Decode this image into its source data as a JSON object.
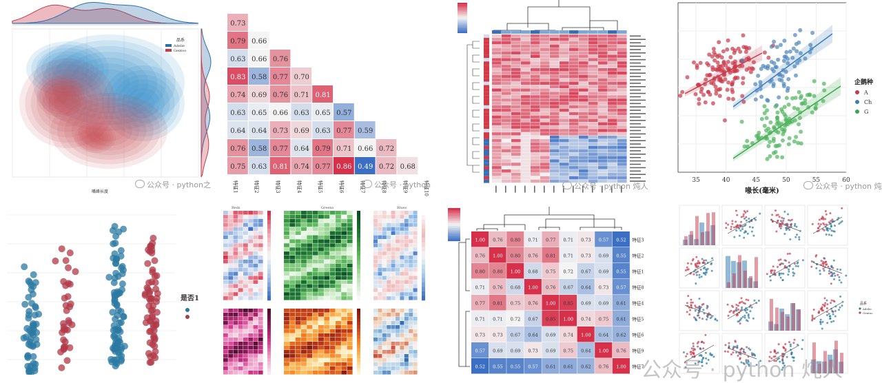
{
  "watermarks": {
    "p1": "公众号 · python之",
    "p2": "公众号 · python",
    "p3": "公众号 · python 炖人",
    "p4": "公众号 · python 炖",
    "p7": "公众号 · python 炖人"
  },
  "colors": {
    "red": "#c8394a",
    "blue": "#3a7fb8",
    "green": "#3aa64b"
  },
  "chart_data": [
    {
      "id": "kde-joint",
      "type": "area",
      "legend": {
        "title": "品系",
        "entries": [
          "Adelie",
          "Gentoo"
        ],
        "colors": [
          "#2b6ea8",
          "#c83a4a"
        ]
      },
      "xlabel": "嘴峰长度"
    },
    {
      "id": "corr-triangle",
      "type": "heatmap",
      "rows": [
        [
          0.73
        ],
        [
          0.79,
          0.66
        ],
        [
          0.63,
          0.66,
          0.76
        ],
        [
          0.83,
          0.58,
          0.77,
          0.7
        ],
        [
          0.74,
          0.69,
          0.76,
          0.71,
          0.81
        ],
        [
          0.63,
          0.65,
          0.66,
          0.63,
          0.65,
          0.57
        ],
        [
          0.64,
          0.64,
          0.73,
          0.69,
          0.63,
          0.77,
          0.59
        ],
        [
          0.76,
          0.58,
          0.77,
          0.64,
          0.79,
          0.71,
          0.66,
          0.72
        ],
        [
          0.75,
          0.63,
          0.81,
          0.74,
          0.77,
          0.86,
          0.49,
          0.72,
          0.68
        ]
      ],
      "xlabels": [
        "特征1",
        "特征2",
        "特征3",
        "特征4",
        "特征5",
        "特征6",
        "特征7",
        "特征8",
        "特征9",
        "特征10"
      ]
    },
    {
      "id": "clustermap",
      "type": "heatmap"
    },
    {
      "id": "scatter-regression",
      "type": "scatter",
      "xlabel": "喙长(毫米)",
      "xticks": [
        "35",
        "40",
        "45",
        "50",
        "55",
        "60"
      ],
      "xlim": [
        32,
        60
      ],
      "ylim": [
        0,
        1
      ],
      "legend": {
        "title": "企鹅种",
        "entries": [
          "A",
          "Ch",
          "G"
        ]
      }
    },
    {
      "id": "strip-plot",
      "type": "scatter",
      "legend": {
        "title": "是否1"
      }
    },
    {
      "id": "multi-heatmaps",
      "type": "heatmap",
      "titles": [
        "Reds",
        "Greens",
        "Blues"
      ]
    },
    {
      "id": "cluster-corr",
      "type": "heatmap",
      "size": 9,
      "matrix": [
        [
          1.0,
          0.76,
          0.8,
          0.71,
          0.77,
          0.71,
          0.73,
          0.57,
          0.52
        ],
        [
          0.76,
          1.0,
          0.8,
          0.76,
          0.81,
          0.71,
          0.73,
          0.69,
          0.55
        ],
        [
          0.8,
          0.8,
          1.0,
          0.68,
          0.75,
          0.72,
          0.67,
          0.69,
          0.55
        ],
        [
          0.71,
          0.76,
          0.68,
          1.0,
          0.76,
          0.67,
          0.64,
          0.73,
          0.57
        ],
        [
          0.77,
          0.81,
          0.75,
          0.76,
          1.0,
          0.85,
          0.69,
          0.69,
          0.61
        ],
        [
          0.71,
          0.71,
          0.72,
          0.67,
          0.85,
          1.0,
          0.74,
          0.75,
          0.61
        ],
        [
          0.73,
          0.73,
          0.67,
          0.64,
          0.69,
          0.74,
          1.0,
          0.64,
          0.62
        ],
        [
          0.57,
          0.69,
          0.69,
          0.73,
          0.69,
          0.75,
          0.64,
          1.0,
          0.76
        ],
        [
          0.52,
          0.55,
          0.55,
          0.57,
          0.61,
          0.61,
          0.62,
          0.76,
          1.0
        ]
      ],
      "row_labels": [
        "特征3",
        "特征2",
        "特征1",
        "特征8",
        "特征4",
        "特征5",
        "特征6",
        "特征9",
        "特征7"
      ]
    },
    {
      "id": "pairplot",
      "type": "scatter",
      "grid": [
        4,
        4
      ],
      "legend": {
        "title": "品系",
        "entries": [
          "Adelie",
          "Gentoo"
        ]
      }
    }
  ],
  "bottom_watermark": "公众号 · python 炖人"
}
